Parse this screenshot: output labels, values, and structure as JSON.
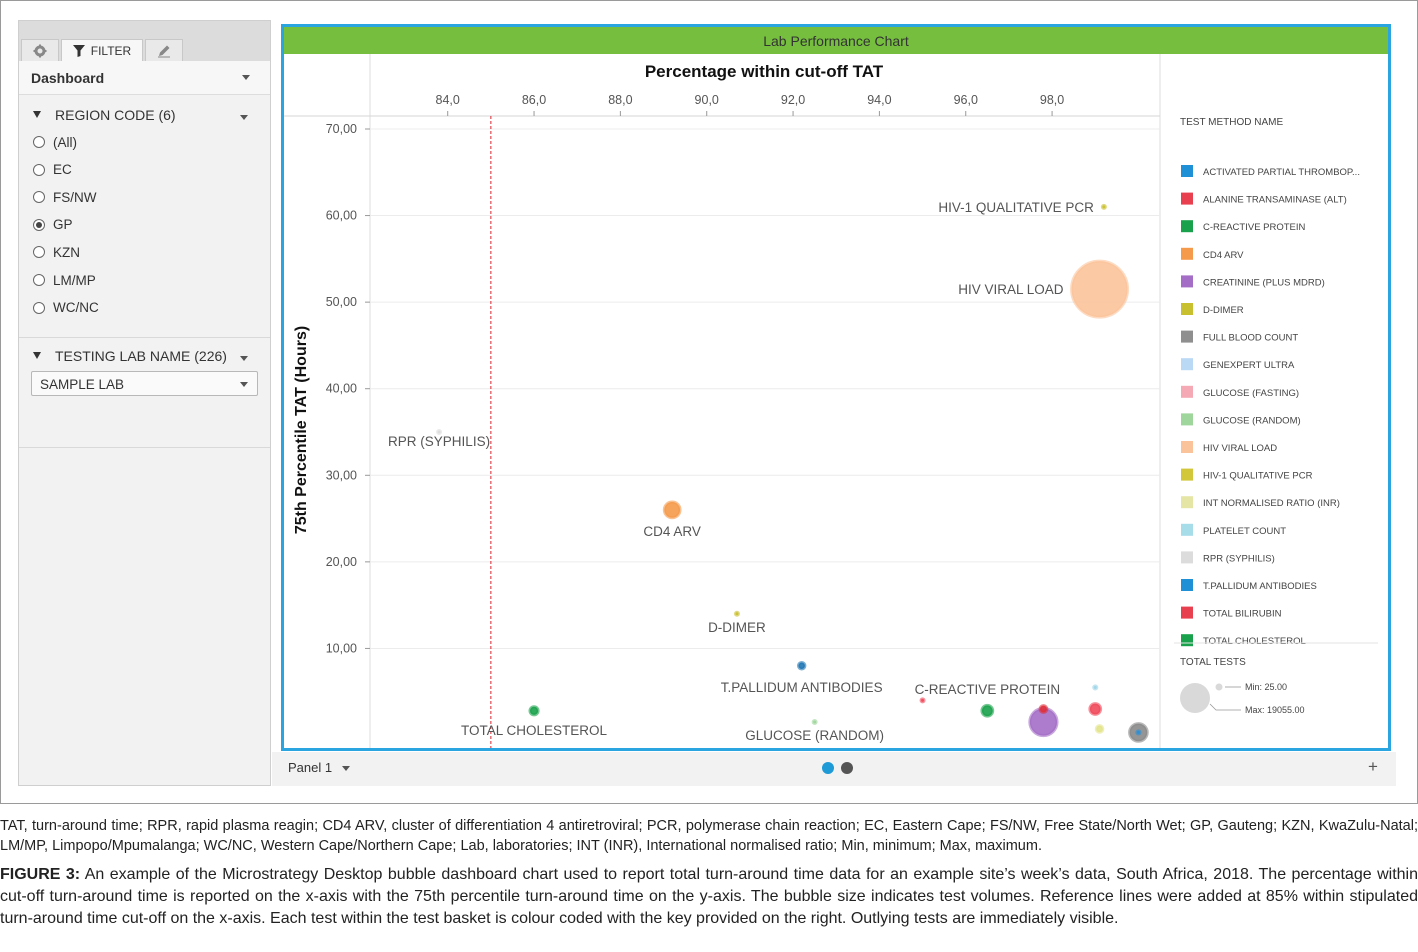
{
  "left_panel": {
    "tabs": {
      "filter_label": "FILTER"
    },
    "dashboard_label": "Dashboard",
    "region": {
      "title": "REGION CODE (6)",
      "options": [
        "(All)",
        "EC",
        "FS/NW",
        "GP",
        "KZN",
        "LM/MP",
        "WC/NC"
      ],
      "selected": "GP"
    },
    "lab": {
      "title": "TESTING LAB NAME (226)",
      "selected_value": "SAMPLE LAB"
    }
  },
  "chart_header": "Lab Performance Chart",
  "bottom_bar": {
    "panel_label": "Panel 1",
    "add_icon": "+"
  },
  "chart_data": {
    "type": "scatter",
    "title": "Percentage within cut-off TAT",
    "xlabel": "",
    "ylabel": "75th Percentile TAT (Hours)",
    "xlim": [
      82.2,
      100.5
    ],
    "ylim": [
      -1.5,
      71.5
    ],
    "x_ticks": [
      "84,0",
      "86,0",
      "88,0",
      "90,0",
      "92,0",
      "94,0",
      "96,0",
      "98,0"
    ],
    "y_ticks": [
      "10,00",
      "20,00",
      "30,00",
      "40,00",
      "50,00",
      "60,00",
      "70,00"
    ],
    "reference_line_x": 85,
    "points": [
      {
        "test": "HIV-1 QUALITATIVE PCR",
        "x": 99.2,
        "y": 61.0,
        "size": 40,
        "color": "#c9c02f",
        "label": "HIV-1 QUALITATIVE PCR"
      },
      {
        "test": "HIV VIRAL LOAD",
        "x": 99.1,
        "y": 51.5,
        "size": 19055,
        "color": "#fbc39a",
        "label": "HIV VIRAL LOAD"
      },
      {
        "test": "RPR (SYPHILIS)",
        "x": 83.8,
        "y": 35.0,
        "size": 25,
        "color": "#dcdcdc",
        "label": "RPR (SYPHILIS)"
      },
      {
        "test": "CD4 ARV",
        "x": 89.2,
        "y": 26.0,
        "size": 1500,
        "color": "#f59a4a",
        "label": "CD4 ARV"
      },
      {
        "test": "D-DIMER",
        "x": 90.7,
        "y": 14.0,
        "size": 25,
        "color": "#c9c02f",
        "label": "D-DIMER"
      },
      {
        "test": "T.PALLIDUM ANTIBODIES",
        "x": 92.2,
        "y": 8.0,
        "size": 250,
        "color": "#1f77b4",
        "label": "T.PALLIDUM ANTIBODIES"
      },
      {
        "test": "TOTAL CHOLESTEROL",
        "x": 86.0,
        "y": 2.8,
        "size": 400,
        "color": "#1aa14b",
        "label": "TOTAL CHOLESTEROL"
      },
      {
        "test": "GLUCOSE (RANDOM)",
        "x": 92.5,
        "y": 1.5,
        "size": 25,
        "color": "#9fd69b",
        "label": "GLUCOSE (RANDOM)"
      },
      {
        "test": "C-REACTIVE PROTEIN",
        "x": 96.5,
        "y": 2.8,
        "size": 700,
        "color": "#1aa14b",
        "label": "C-REACTIVE PROTEIN"
      },
      {
        "test": "TOTAL BILIRUBIN",
        "x": 95.0,
        "y": 4.0,
        "size": 25,
        "color": "#f0495a",
        "label": ""
      },
      {
        "test": "CREATININE (PLUS MDRD)",
        "x": 97.8,
        "y": 1.5,
        "size": 4500,
        "color": "#a46ec6",
        "label": ""
      },
      {
        "test": "ALANINE TRANSAMINASE (ALT)",
        "x": 97.8,
        "y": 3.0,
        "size": 280,
        "color": "#e0303a",
        "label": ""
      },
      {
        "test": "TOTAL BILIRUBIN",
        "x": 99.0,
        "y": 3.0,
        "size": 700,
        "color": "#f0495a",
        "label": ""
      },
      {
        "test": "INT NORMALISED RATIO (INR)",
        "x": 99.1,
        "y": 0.7,
        "size": 260,
        "color": "#e3e48a",
        "label": ""
      },
      {
        "test": "PLATELET COUNT",
        "x": 99.0,
        "y": 5.5,
        "size": 60,
        "color": "#9ed6e8",
        "label": ""
      },
      {
        "test": "FULL BLOOD COUNT",
        "x": 100.0,
        "y": 0.3,
        "size": 1900,
        "color": "#8a8a8a",
        "label": ""
      },
      {
        "test": "ACTIVATED PARTIAL THROMBOPLASTIN",
        "x": 100.0,
        "y": 0.3,
        "size": 60,
        "color": "#2b8fd6",
        "label": ""
      }
    ],
    "legend": {
      "title": "TEST METHOD NAME",
      "placement": "right",
      "items": [
        {
          "name": "ACTIVATED PARTIAL THROMBOP...",
          "color": "#1f8fd6"
        },
        {
          "name": "ALANINE TRANSAMINASE (ALT)",
          "color": "#e8404f"
        },
        {
          "name": "C-REACTIVE PROTEIN",
          "color": "#1aa14b"
        },
        {
          "name": "CD4 ARV",
          "color": "#f59a4a"
        },
        {
          "name": "CREATININE (PLUS MDRD)",
          "color": "#a46ec6"
        },
        {
          "name": "D-DIMER",
          "color": "#c9c02f"
        },
        {
          "name": "FULL BLOOD COUNT",
          "color": "#8f8f8f"
        },
        {
          "name": "GENEXPERT ULTRA",
          "color": "#b9d9f5"
        },
        {
          "name": "GLUCOSE (FASTING)",
          "color": "#f5a9b4"
        },
        {
          "name": "GLUCOSE (RANDOM)",
          "color": "#9fd69b"
        },
        {
          "name": "HIV VIRAL LOAD",
          "color": "#fbc39a"
        },
        {
          "name": "HIV-1 QUALITATIVE PCR",
          "color": "#d2c63a"
        },
        {
          "name": "INT NORMALISED RATIO (INR)",
          "color": "#e5e6a6"
        },
        {
          "name": "PLATELET COUNT",
          "color": "#a7dce9"
        },
        {
          "name": "RPR (SYPHILIS)",
          "color": "#dcdcdc"
        },
        {
          "name": "T.PALLIDUM ANTIBODIES",
          "color": "#1f8fd6"
        },
        {
          "name": "TOTAL BILIRUBIN",
          "color": "#e8404f"
        },
        {
          "name": "TOTAL CHOLESTEROL",
          "color": "#1aa14b"
        }
      ],
      "size_legend": {
        "title": "TOTAL TESTS",
        "min_label": "Min: 25.00",
        "max_label": "Max: 19055.00"
      }
    }
  },
  "caption": {
    "abbrev": "TAT, turn-around time; RPR, rapid plasma reagin; CD4 ARV, cluster of differentiation 4 antiretroviral; PCR, polymerase chain reaction; EC, Eastern Cape; FS/NW, Free State/North Wet; GP, Gauteng; KZN, KwaZulu-Natal; LM/MP, Limpopo/Mpumalanga; WC/NC, Western Cape/Northern Cape; Lab, laboratories; INT (INR), International normalised ratio; Min, minimum; Max, maximum.",
    "figure_label": "FIGURE 3:",
    "figure_text": "An example of the Microstrategy Desktop bubble dashboard chart used to report total turn-around time data for an example site’s week’s data, South Africa, 2018. The percentage within cut-off turn-around time is reported on the x-axis with the 75th percentile turn-around time on the y-axis. The bubble size indicates test volumes. Reference lines were added at 85% within stipulated turn-around time cut-off on the x-axis. Each test within the test basket is colour coded with the key provided on the right. Outlying tests are immediately visible."
  }
}
